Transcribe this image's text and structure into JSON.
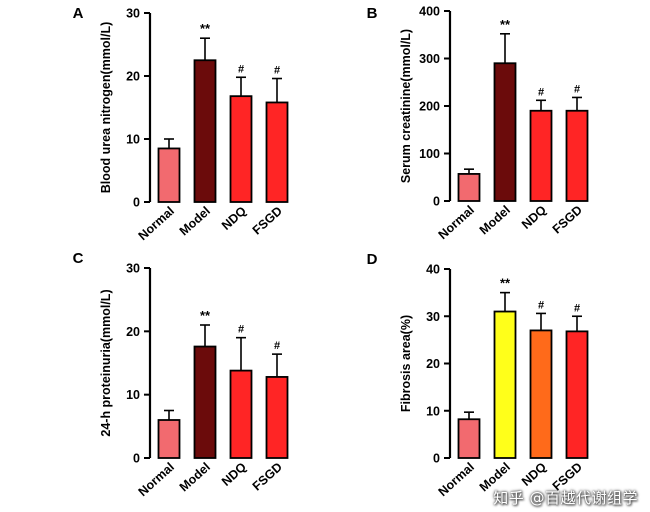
{
  "chart_data": [
    {
      "type": "bar",
      "panel": "A",
      "ylabel": "Blood urea nitrogen(mmol/L)",
      "ylim": [
        0,
        30
      ],
      "yticks": [
        0,
        10,
        20,
        30
      ],
      "categories": [
        "Normal",
        "Model",
        "NDQ",
        "FSGD"
      ],
      "values": [
        8.5,
        22.5,
        16.8,
        15.8
      ],
      "errors": [
        1.5,
        3.5,
        3.0,
        3.8
      ],
      "annotations": [
        "",
        "**",
        "#",
        "#"
      ],
      "colors": [
        "#f26a6f",
        "#6b0b0b",
        "#ff2525",
        "#ff2525"
      ]
    },
    {
      "type": "bar",
      "panel": "B",
      "ylabel": "Serum creatinine(mmol/L)",
      "ylim": [
        0,
        400
      ],
      "yticks": [
        0,
        100,
        200,
        300,
        400
      ],
      "categories": [
        "Normal",
        "Model",
        "NDQ",
        "FSGD"
      ],
      "values": [
        57,
        290,
        190,
        190
      ],
      "errors": [
        10,
        62,
        22,
        28
      ],
      "annotations": [
        "",
        "**",
        "#",
        "#"
      ],
      "colors": [
        "#f26a6f",
        "#6b0b0b",
        "#ff2525",
        "#ff2525"
      ]
    },
    {
      "type": "bar",
      "panel": "C",
      "ylabel": "24-h proteinuria(mmol/L)",
      "ylim": [
        0,
        30
      ],
      "yticks": [
        0,
        10,
        20,
        30
      ],
      "categories": [
        "Normal",
        "Model",
        "NDQ",
        "FSGD"
      ],
      "values": [
        6.0,
        17.6,
        13.8,
        12.8
      ],
      "errors": [
        1.5,
        3.4,
        5.2,
        3.6
      ],
      "annotations": [
        "",
        "**",
        "#",
        "#"
      ],
      "colors": [
        "#f26a6f",
        "#6b0b0b",
        "#ff2525",
        "#ff2525"
      ]
    },
    {
      "type": "bar",
      "panel": "D",
      "ylabel": "Fibrosis area(%)",
      "ylim": [
        0,
        40
      ],
      "yticks": [
        0,
        10,
        20,
        30,
        40
      ],
      "categories": [
        "Normal",
        "Model",
        "NDQ",
        "FSGD"
      ],
      "values": [
        8.2,
        31.0,
        27.0,
        26.8
      ],
      "errors": [
        1.5,
        4.0,
        3.6,
        3.2
      ],
      "annotations": [
        "",
        "**",
        "#",
        "#"
      ],
      "colors": [
        "#f26a6f",
        "#ffff1a",
        "#ff6a1a",
        "#ff2525"
      ]
    }
  ],
  "watermark": "知乎 @百越代谢组学"
}
